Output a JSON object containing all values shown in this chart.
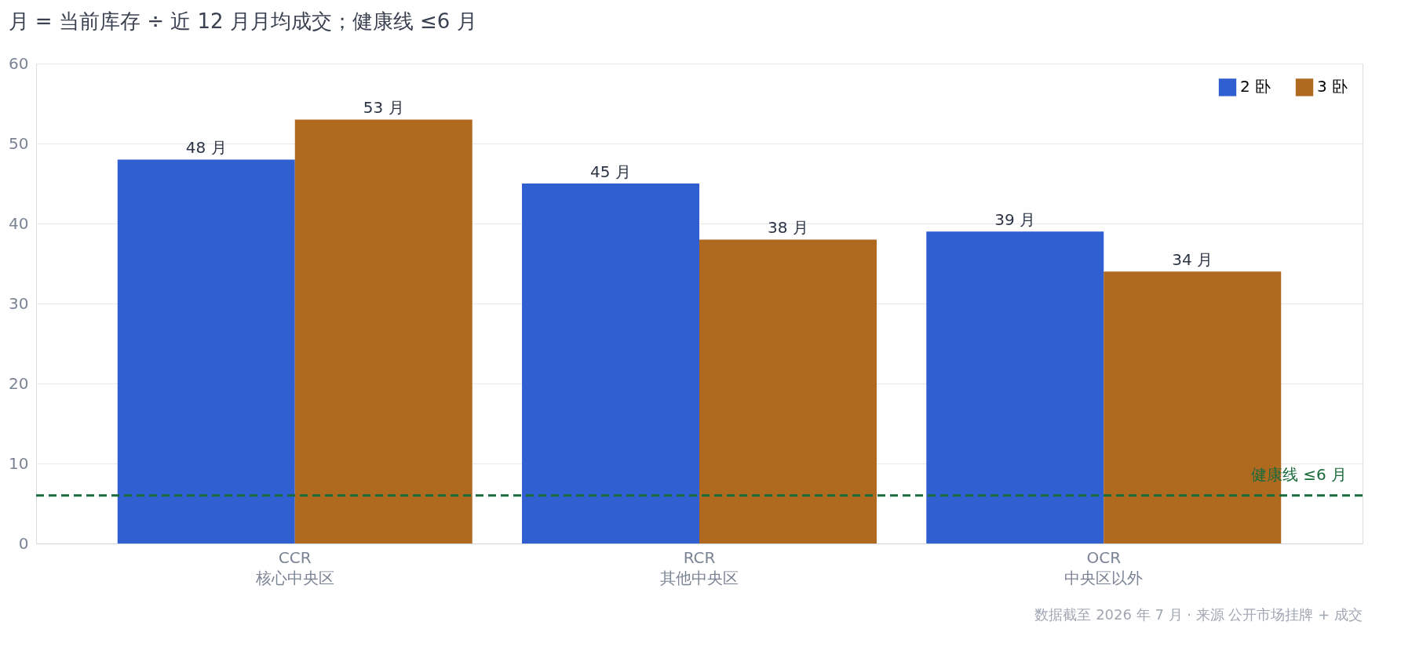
{
  "chart_data": {
    "type": "bar",
    "title": "月 = 当前库存 ÷ 近 12 月月均成交；健康线 ≤6 月",
    "categories": [
      "CCR\n核心中央区",
      "RCR\n其他中央区",
      "OCR\n中央区以外"
    ],
    "series": [
      {
        "name": "2 卧",
        "color": "#2f5fd0",
        "values": [
          48,
          45,
          39
        ],
        "value_labels": [
          "48 月",
          "45 月",
          "39 月"
        ]
      },
      {
        "name": "3 卧",
        "color": "#b06a20",
        "values": [
          53,
          38,
          34
        ],
        "value_labels": [
          "53 月",
          "38 月",
          "34 月"
        ]
      }
    ],
    "ylim": [
      0,
      60
    ],
    "yticks": [
      0,
      10,
      20,
      30,
      40,
      50,
      60
    ],
    "grid": "y",
    "legend": "top right",
    "ref_lines": [
      {
        "axis": "y",
        "value": 6,
        "label": "健康线 ≤6 月",
        "color": "#1a6b3c",
        "line_style": "dashed"
      }
    ],
    "annotations": [
      "数据截至 2026 年 7 月 · 来源 公开市场挂牌 + 成交"
    ]
  }
}
